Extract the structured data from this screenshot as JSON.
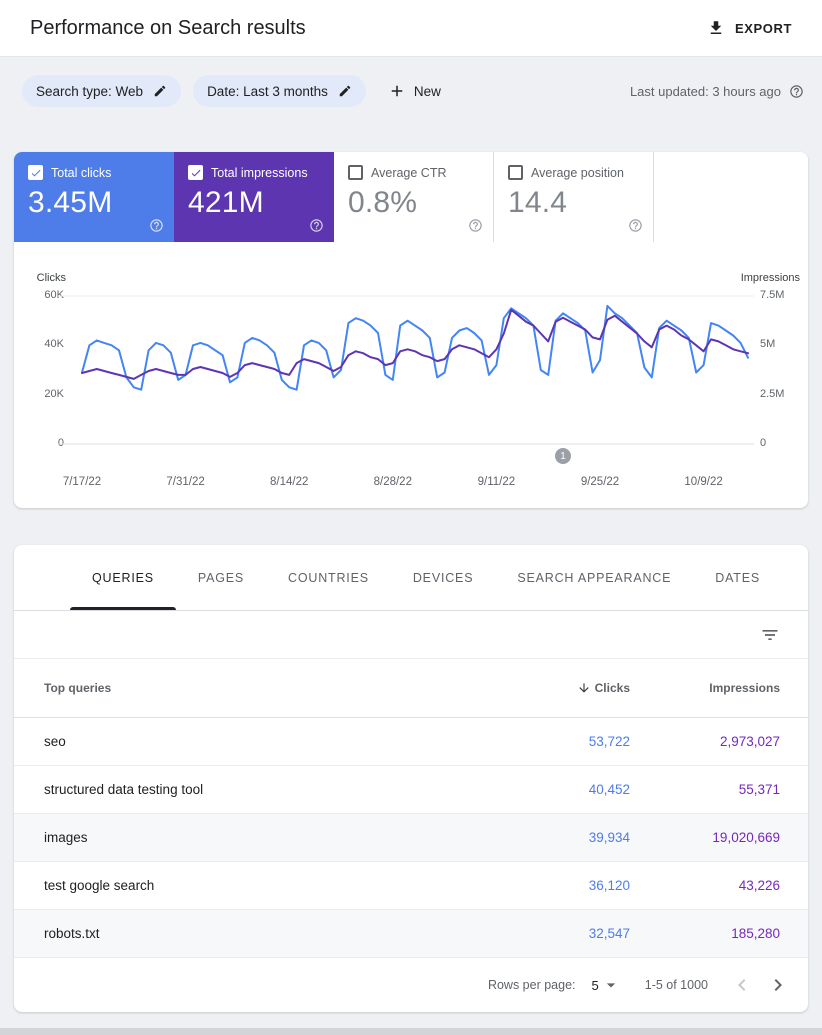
{
  "header": {
    "title": "Performance on Search results",
    "export_label": "EXPORT"
  },
  "filters": {
    "search_type_chip": "Search type: Web",
    "date_chip": "Date: Last 3 months",
    "new_button": "New",
    "last_updated": "Last updated: 3 hours ago"
  },
  "metrics": [
    {
      "label": "Total clicks",
      "value": "3.45M",
      "checked": true,
      "color": "#4e7ce9"
    },
    {
      "label": "Total impressions",
      "value": "421M",
      "checked": true,
      "color": "#5e35b1"
    },
    {
      "label": "Average CTR",
      "value": "0.8%",
      "checked": false
    },
    {
      "label": "Average position",
      "value": "14.4",
      "checked": false
    }
  ],
  "chart_data": {
    "type": "line",
    "left_axis": {
      "label": "Clicks",
      "ticks": [
        "60K",
        "40K",
        "20K",
        "0"
      ],
      "max": 60,
      "unit": "thousands"
    },
    "right_axis": {
      "label": "Impressions",
      "ticks": [
        "7.5M",
        "5M",
        "2.5M",
        "0"
      ],
      "max": 7.5,
      "unit": "millions"
    },
    "x_tick_labels": [
      "7/17/22",
      "7/31/22",
      "8/14/22",
      "8/28/22",
      "9/11/22",
      "9/25/22",
      "10/9/22"
    ],
    "series": [
      {
        "name": "Clicks",
        "color": "#4285f4",
        "axis": "left",
        "axis_max": 60,
        "unit": "K",
        "values": [
          29,
          40,
          42,
          41,
          40,
          38,
          27,
          23,
          22,
          38,
          41,
          40,
          37,
          26,
          28,
          40,
          41,
          40,
          38,
          36,
          25,
          27,
          41,
          43,
          42,
          40,
          37,
          26,
          23,
          22,
          40,
          42,
          41,
          38,
          27,
          30,
          49,
          51,
          50,
          48,
          45,
          28,
          26,
          48,
          50,
          48,
          46,
          43,
          27,
          29,
          43,
          46,
          47,
          45,
          42,
          28,
          32,
          51,
          55,
          53,
          51,
          48,
          30,
          28,
          50,
          53,
          51,
          49,
          46,
          29,
          34,
          56,
          53,
          51,
          48,
          45,
          31,
          27,
          47,
          50,
          48,
          46,
          43,
          29,
          32,
          49,
          48,
          46,
          44,
          41,
          35
        ]
      },
      {
        "name": "Impressions",
        "color": "#5e35b1",
        "axis": "right",
        "axis_max": 7.5,
        "unit": "M",
        "values": [
          3.6,
          3.7,
          3.8,
          3.7,
          3.6,
          3.5,
          3.4,
          3.3,
          3.5,
          3.7,
          3.8,
          3.7,
          3.6,
          3.5,
          3.5,
          3.8,
          3.9,
          3.8,
          3.7,
          3.6,
          3.4,
          3.6,
          4.0,
          4.1,
          4.0,
          3.9,
          3.8,
          3.6,
          3.5,
          4.1,
          4.3,
          4.2,
          4.1,
          3.9,
          3.7,
          3.9,
          4.5,
          4.7,
          4.6,
          4.4,
          4.3,
          4.0,
          4.1,
          4.7,
          4.8,
          4.7,
          4.5,
          4.4,
          4.2,
          4.3,
          4.8,
          5.0,
          4.9,
          4.8,
          4.6,
          4.4,
          4.8,
          5.6,
          6.8,
          6.5,
          6.2,
          6.0,
          5.6,
          5.2,
          6.2,
          6.4,
          6.2,
          6.0,
          5.8,
          5.4,
          5.3,
          6.3,
          6.5,
          6.2,
          5.9,
          5.6,
          5.2,
          4.9,
          5.8,
          6.0,
          5.8,
          5.5,
          5.3,
          5.0,
          4.7,
          5.3,
          5.2,
          5.0,
          4.8,
          4.7,
          4.6
        ]
      }
    ],
    "annotation": {
      "label": "1",
      "day_index": 65
    }
  },
  "table": {
    "tabs": [
      {
        "label": "QUERIES",
        "active": true
      },
      {
        "label": "PAGES",
        "active": false
      },
      {
        "label": "COUNTRIES",
        "active": false
      },
      {
        "label": "DEVICES",
        "active": false
      },
      {
        "label": "SEARCH APPEARANCE",
        "active": false
      },
      {
        "label": "DATES",
        "active": false
      }
    ],
    "columns": {
      "query": "Top queries",
      "clicks": "Clicks",
      "impressions": "Impressions"
    },
    "rows": [
      {
        "query": "seo",
        "clicks": "53,722",
        "impressions": "2,973,027"
      },
      {
        "query": "structured data testing tool",
        "clicks": "40,452",
        "impressions": "55,371"
      },
      {
        "query": "images",
        "clicks": "39,934",
        "impressions": "19,020,669"
      },
      {
        "query": "test google search",
        "clicks": "36,120",
        "impressions": "43,226"
      },
      {
        "query": "robots.txt",
        "clicks": "32,547",
        "impressions": "185,280"
      }
    ],
    "pagination": {
      "rows_per_page_label": "Rows per page:",
      "rows_per_page": "5",
      "range": "1-5 of 1000"
    }
  },
  "colors": {
    "clicks_blue_card": "#4e7ce9",
    "clicks_blue_line": "#4285f4",
    "impressions_purple": "#5e35b1",
    "table_clicks_link": "#4e7ce9",
    "table_impressions_link": "#7627bc"
  }
}
